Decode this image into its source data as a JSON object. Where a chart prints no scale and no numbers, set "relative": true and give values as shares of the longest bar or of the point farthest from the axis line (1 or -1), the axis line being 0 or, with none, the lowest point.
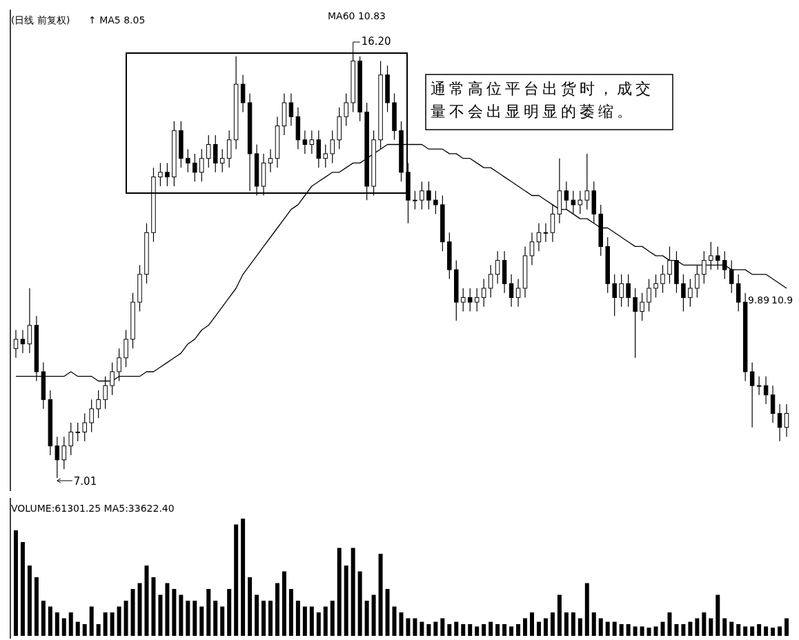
{
  "chart_data": [
    {
      "type": "candlestick",
      "title": "(日线 前复权)",
      "annotations": [
        "↑ MA5 8.05",
        "MA60 10.83",
        "通常高位平台出货时，成交量不会出显明显的萎缩。",
        "9.89",
        "10.9",
        "16.20",
        "7.01"
      ],
      "categories": [
        null,
        null,
        null,
        null,
        null,
        null,
        null,
        null,
        null,
        null,
        null,
        null,
        null,
        null,
        null,
        null,
        null,
        null,
        null,
        null,
        null,
        null,
        null,
        null,
        null,
        null,
        null,
        null,
        null,
        null,
        null,
        null,
        null,
        null,
        null,
        null,
        null,
        null,
        null,
        null,
        null,
        null,
        null,
        null,
        null,
        null,
        null,
        null,
        null,
        null,
        null,
        null,
        null,
        null,
        null,
        null,
        null,
        null,
        null,
        null,
        null,
        null,
        null,
        null,
        null,
        null,
        null,
        null,
        null,
        null,
        null,
        null,
        null,
        null,
        null,
        null,
        null,
        null,
        null,
        null,
        null,
        null,
        null,
        null,
        null,
        null,
        null,
        null,
        null,
        null,
        null,
        null,
        null,
        null,
        null,
        null,
        null,
        null,
        null,
        null,
        null,
        null,
        null,
        null,
        null,
        null,
        null,
        null,
        null,
        null,
        null,
        null,
        null
      ],
      "ohlc": [
        [
          9.8,
          10.2,
          9.6,
          10.0
        ],
        [
          10.0,
          10.2,
          9.7,
          9.9
        ],
        [
          9.9,
          11.1,
          9.7,
          10.3
        ],
        [
          10.3,
          10.5,
          9.1,
          9.3
        ],
        [
          9.3,
          9.5,
          8.5,
          8.7
        ],
        [
          8.7,
          8.9,
          7.5,
          7.7
        ],
        [
          7.7,
          7.9,
          7.01,
          7.4
        ],
        [
          7.4,
          7.9,
          7.2,
          7.7
        ],
        [
          7.7,
          8.2,
          7.5,
          8.0
        ],
        [
          8.0,
          8.2,
          7.8,
          8.0
        ],
        [
          8.0,
          8.4,
          7.8,
          8.2
        ],
        [
          8.2,
          8.7,
          8.0,
          8.5
        ],
        [
          8.5,
          8.9,
          8.3,
          8.7
        ],
        [
          8.7,
          9.2,
          8.5,
          9.0
        ],
        [
          9.0,
          9.5,
          8.8,
          9.3
        ],
        [
          9.3,
          9.8,
          9.1,
          9.6
        ],
        [
          9.6,
          10.2,
          9.4,
          10.0
        ],
        [
          10.0,
          11.0,
          9.8,
          10.8
        ],
        [
          10.8,
          11.6,
          10.6,
          11.4
        ],
        [
          11.4,
          12.5,
          11.2,
          12.3
        ],
        [
          12.3,
          13.7,
          12.1,
          13.5
        ],
        [
          13.5,
          13.8,
          13.3,
          13.6
        ],
        [
          13.6,
          13.8,
          13.3,
          13.5
        ],
        [
          13.5,
          14.7,
          13.3,
          14.5
        ],
        [
          14.5,
          14.7,
          13.7,
          13.9
        ],
        [
          13.9,
          14.1,
          13.6,
          13.8
        ],
        [
          13.8,
          14.0,
          13.4,
          13.6
        ],
        [
          13.6,
          14.1,
          13.4,
          13.9
        ],
        [
          13.9,
          14.4,
          13.7,
          14.2
        ],
        [
          14.2,
          14.4,
          13.6,
          13.8
        ],
        [
          13.8,
          14.1,
          13.6,
          13.9
        ],
        [
          13.9,
          14.5,
          13.7,
          14.3
        ],
        [
          14.3,
          16.1,
          14.1,
          15.5
        ],
        [
          15.5,
          15.7,
          14.9,
          15.1
        ],
        [
          15.1,
          15.3,
          13.2,
          14.0
        ],
        [
          14.0,
          14.2,
          13.1,
          13.3
        ],
        [
          13.3,
          14.0,
          13.1,
          13.8
        ],
        [
          13.8,
          14.1,
          13.6,
          13.9
        ],
        [
          13.9,
          14.8,
          13.7,
          14.6
        ],
        [
          14.6,
          15.3,
          14.4,
          15.1
        ],
        [
          15.1,
          15.3,
          14.6,
          14.8
        ],
        [
          14.8,
          15.0,
          14.1,
          14.3
        ],
        [
          14.3,
          14.5,
          14.0,
          14.2
        ],
        [
          14.2,
          14.5,
          14.0,
          14.3
        ],
        [
          14.3,
          14.5,
          13.7,
          13.9
        ],
        [
          13.9,
          14.2,
          13.7,
          14.0
        ],
        [
          14.0,
          14.5,
          13.8,
          14.3
        ],
        [
          14.3,
          15.0,
          14.1,
          14.8
        ],
        [
          14.8,
          15.3,
          14.6,
          15.1
        ],
        [
          15.1,
          16.2,
          14.9,
          16.0
        ],
        [
          16.0,
          16.1,
          14.7,
          14.9
        ],
        [
          14.9,
          15.1,
          13.0,
          13.3
        ],
        [
          13.3,
          14.5,
          13.1,
          14.3
        ],
        [
          14.3,
          16.0,
          14.1,
          15.7
        ],
        [
          15.7,
          15.9,
          14.9,
          15.1
        ],
        [
          15.1,
          15.3,
          14.3,
          14.5
        ],
        [
          14.5,
          14.7,
          13.4,
          13.6
        ],
        [
          13.6,
          13.8,
          12.5,
          13.0
        ],
        [
          13.0,
          13.2,
          12.8,
          13.0
        ],
        [
          13.0,
          13.4,
          12.8,
          13.2
        ],
        [
          13.2,
          13.4,
          12.8,
          13.0
        ],
        [
          13.0,
          13.2,
          12.7,
          12.9
        ],
        [
          12.9,
          13.1,
          11.9,
          12.1
        ],
        [
          12.1,
          12.3,
          11.3,
          11.5
        ],
        [
          11.5,
          11.7,
          10.4,
          10.8
        ],
        [
          10.8,
          11.1,
          10.6,
          10.9
        ],
        [
          10.9,
          11.1,
          10.6,
          10.8
        ],
        [
          10.8,
          11.1,
          10.6,
          10.9
        ],
        [
          10.9,
          11.3,
          10.7,
          11.1
        ],
        [
          11.1,
          11.6,
          10.9,
          11.4
        ],
        [
          11.4,
          11.9,
          11.2,
          11.7
        ],
        [
          11.7,
          11.9,
          11.0,
          11.2
        ],
        [
          11.2,
          11.4,
          10.7,
          10.9
        ],
        [
          10.9,
          11.3,
          10.7,
          11.1
        ],
        [
          11.1,
          12.0,
          10.9,
          11.8
        ],
        [
          11.8,
          12.3,
          11.6,
          12.1
        ],
        [
          12.1,
          12.5,
          11.9,
          12.3
        ],
        [
          12.3,
          12.5,
          12.1,
          12.3
        ],
        [
          12.3,
          12.9,
          12.1,
          12.7
        ],
        [
          12.7,
          13.9,
          12.5,
          13.2
        ],
        [
          13.2,
          13.4,
          12.8,
          13.0
        ],
        [
          13.0,
          13.2,
          12.7,
          12.9
        ],
        [
          12.9,
          13.2,
          12.7,
          13.0
        ],
        [
          13.0,
          14.0,
          12.8,
          13.2
        ],
        [
          13.2,
          13.4,
          12.5,
          12.7
        ],
        [
          12.7,
          12.9,
          11.8,
          12.0
        ],
        [
          12.0,
          12.2,
          11.0,
          11.2
        ],
        [
          11.2,
          11.4,
          10.5,
          10.9
        ],
        [
          10.9,
          11.4,
          10.7,
          11.2
        ],
        [
          11.2,
          11.4,
          10.7,
          10.9
        ],
        [
          10.9,
          11.1,
          9.6,
          10.6
        ],
        [
          10.6,
          11.0,
          10.4,
          10.8
        ],
        [
          10.8,
          11.3,
          10.6,
          11.1
        ],
        [
          11.1,
          11.4,
          10.9,
          11.2
        ],
        [
          11.2,
          11.6,
          11.0,
          11.4
        ],
        [
          11.4,
          12.0,
          11.2,
          11.7
        ],
        [
          11.7,
          11.9,
          11.0,
          11.2
        ],
        [
          11.2,
          11.4,
          10.6,
          10.9
        ],
        [
          10.9,
          11.3,
          10.7,
          11.1
        ],
        [
          11.1,
          11.6,
          10.9,
          11.4
        ],
        [
          11.4,
          11.9,
          11.2,
          11.7
        ],
        [
          11.7,
          12.1,
          11.5,
          11.8
        ],
        [
          11.8,
          12.0,
          11.5,
          11.7
        ],
        [
          11.7,
          11.9,
          11.3,
          11.5
        ],
        [
          11.5,
          11.7,
          11.0,
          11.2
        ],
        [
          11.2,
          11.4,
          10.6,
          10.8
        ],
        [
          10.8,
          11.0,
          9.1,
          9.3
        ],
        [
          9.3,
          9.5,
          8.1,
          9.0
        ],
        [
          9.0,
          9.2,
          8.8,
          9.0
        ],
        [
          9.0,
          9.2,
          8.6,
          8.8
        ],
        [
          8.8,
          9.0,
          8.2,
          8.4
        ],
        [
          8.4,
          8.6,
          7.8,
          8.1
        ],
        [
          8.1,
          8.6,
          7.9,
          8.4
        ]
      ],
      "series": [
        {
          "type": "line",
          "color": "#000000",
          "values": [
            9.2,
            9.2,
            9.2,
            9.2,
            9.2,
            9.2,
            9.2,
            9.2,
            9.3,
            9.2,
            9.2,
            9.2,
            9.1,
            9.1,
            9.1,
            9.2,
            9.2,
            9.2,
            9.2,
            9.3,
            9.3,
            9.4,
            9.5,
            9.6,
            9.7,
            9.9,
            10.0,
            10.2,
            10.3,
            10.5,
            10.7,
            10.9,
            11.1,
            11.4,
            11.6,
            11.8,
            12.0,
            12.2,
            12.4,
            12.6,
            12.8,
            12.9,
            13.1,
            13.3,
            13.4,
            13.5,
            13.6,
            13.6,
            13.7,
            13.8,
            13.8,
            13.9,
            14.0,
            14.1,
            14.2,
            14.2,
            14.2,
            14.2,
            14.2,
            14.2,
            14.1,
            14.1,
            14.1,
            14.0,
            14.0,
            13.9,
            13.9,
            13.8,
            13.7,
            13.7,
            13.6,
            13.5,
            13.4,
            13.3,
            13.2,
            13.1,
            13.1,
            13.0,
            12.9,
            12.8,
            12.8,
            12.7,
            12.6,
            12.6,
            12.5,
            12.4,
            12.4,
            12.3,
            12.2,
            12.1,
            12.0,
            12.0,
            11.9,
            11.8,
            11.8,
            11.7,
            11.7,
            11.6,
            11.6,
            11.6,
            11.6,
            11.6,
            11.6,
            11.6,
            11.5,
            11.5,
            11.5,
            11.4,
            11.4,
            11.4,
            11.3,
            11.2,
            11.1
          ]
        }
      ]
    },
    {
      "type": "bar",
      "title": "VOLUME:61301.25 MA5:33622.40",
      "relative": true,
      "color": "#000000",
      "categories": [
        null,
        null,
        null,
        null,
        null,
        null,
        null,
        null,
        null,
        null,
        null,
        null,
        null,
        null,
        null,
        null,
        null,
        null,
        null,
        null,
        null,
        null,
        null,
        null,
        null,
        null,
        null,
        null,
        null,
        null,
        null,
        null,
        null,
        null,
        null,
        null,
        null,
        null,
        null,
        null,
        null,
        null,
        null,
        null,
        null,
        null,
        null,
        null,
        null,
        null,
        null,
        null,
        null,
        null,
        null,
        null,
        null,
        null,
        null,
        null,
        null,
        null,
        null,
        null,
        null,
        null,
        null,
        null,
        null,
        null,
        null,
        null,
        null,
        null,
        null,
        null,
        null,
        null,
        null,
        null,
        null,
        null,
        null,
        null,
        null,
        null,
        null,
        null,
        null,
        null,
        null,
        null,
        null,
        null,
        null,
        null,
        null,
        null,
        null,
        null,
        null,
        null,
        null,
        null,
        null,
        null,
        null,
        null,
        null,
        null,
        null,
        null,
        null
      ],
      "values": [
        0.9,
        0.8,
        0.6,
        0.5,
        0.3,
        0.25,
        0.2,
        0.15,
        0.2,
        0.12,
        0.1,
        0.25,
        0.1,
        0.2,
        0.2,
        0.25,
        0.3,
        0.4,
        0.45,
        0.6,
        0.5,
        0.35,
        0.45,
        0.4,
        0.35,
        0.3,
        0.3,
        0.25,
        0.4,
        0.3,
        0.25,
        0.4,
        0.95,
        1.0,
        0.5,
        0.35,
        0.3,
        0.3,
        0.45,
        0.55,
        0.4,
        0.3,
        0.25,
        0.25,
        0.2,
        0.25,
        0.3,
        0.75,
        0.6,
        0.75,
        0.55,
        0.3,
        0.35,
        0.7,
        0.4,
        0.25,
        0.2,
        0.15,
        0.15,
        0.12,
        0.1,
        0.12,
        0.15,
        0.1,
        0.12,
        0.1,
        0.1,
        0.08,
        0.1,
        0.12,
        0.1,
        0.1,
        0.08,
        0.1,
        0.15,
        0.2,
        0.12,
        0.15,
        0.2,
        0.35,
        0.2,
        0.2,
        0.15,
        0.45,
        0.2,
        0.15,
        0.12,
        0.12,
        0.1,
        0.1,
        0.08,
        0.08,
        0.07,
        0.08,
        0.12,
        0.2,
        0.1,
        0.1,
        0.12,
        0.15,
        0.2,
        0.15,
        0.35,
        0.15,
        0.12,
        0.1,
        0.08,
        0.08,
        0.1,
        0.08,
        0.07,
        0.08,
        0.15
      ]
    }
  ]
}
